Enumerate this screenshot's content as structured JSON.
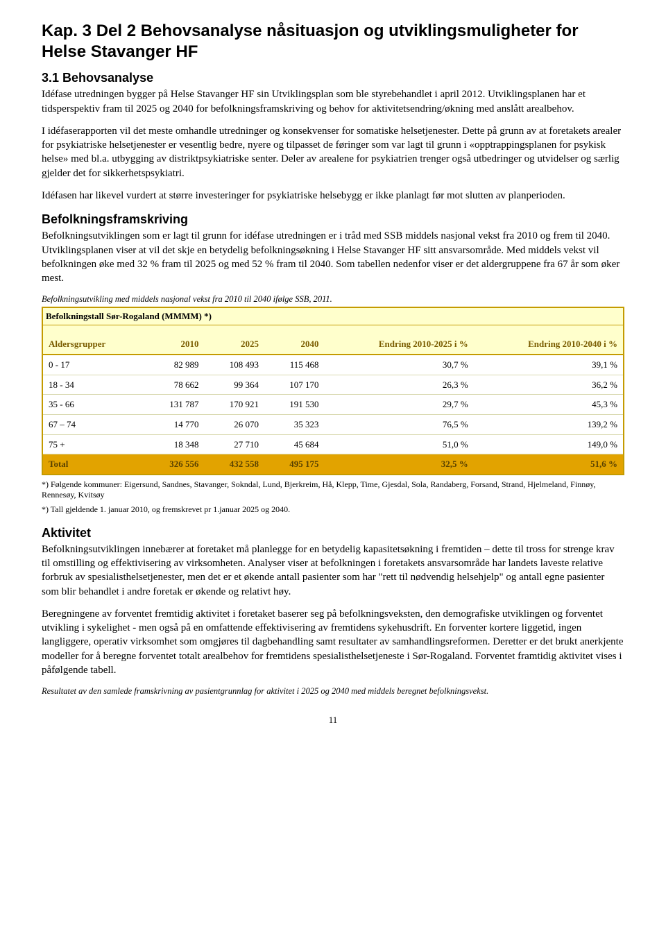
{
  "title": "Kap. 3 Del 2 Behovsanalyse nåsituasjon og utviklingsmuligheter for Helse Stavanger HF",
  "section1": {
    "heading": "3.1 Behovsanalyse",
    "p1": "Idéfase utredningen bygger på Helse Stavanger HF sin Utviklingsplan som ble styrebehandlet i april 2012. Utviklingsplanen har et tidsperspektiv fram til 2025 og 2040 for befolkningsframskriving og behov for aktivitetsendring/økning med anslått arealbehov.",
    "p2": "I idéfaserapporten vil det meste omhandle utredninger og konsekvenser for somatiske helsetjenester. Dette på grunn av at foretakets arealer for psykiatriske helsetjenester er vesentlig bedre, nyere og tilpasset de føringer som var lagt til grunn i «opptrappingsplanen for psykisk helse» med bl.a. utbygging av distriktpsykiatriske senter. Deler av arealene for psykiatrien trenger også utbedringer og utvidelser og særlig gjelder det for sikkerhetspsykiatri.",
    "p3": "Idéfasen har likevel vurdert at større investeringer for psykiatriske helsebygg er ikke planlagt før mot slutten av planperioden."
  },
  "section2": {
    "heading": "Befolkningsframskriving",
    "p1": "Befolkningsutviklingen som er lagt til grunn for idéfase utredningen er i tråd med SSB middels nasjonal vekst fra 2010 og frem til 2040.",
    "p2": "Utviklingsplanen viser at vil det skje en betydelig  befolkningsøkning i Helse Stavanger HF sitt ansvarsområde. Med middels vekst vil befolkningen øke med 32 % fram til 2025 og med 52 % fram til 2040. Som tabellen nedenfor viser er det aldergruppene fra 67 år som øker mest.",
    "table_caption": "Befolkningsutvikling med middels nasjonal vekst fra 2010 til 2040 ifølge SSB, 2011."
  },
  "table": {
    "banner": "Befolkningstall Sør-Rogaland (MMMM) *)",
    "headers": {
      "col1": "Aldersgrupper",
      "col2": "2010",
      "col3": "2025",
      "col4": "2040",
      "col5": "Endring 2010-2025 i %",
      "col6": "Endring 2010-2040 i %"
    },
    "rows": [
      {
        "label": "0 - 17",
        "v2010": "82 989",
        "v2025": "108 493",
        "v2040": "115 468",
        "e2025": "30,7 %",
        "e2040": "39,1 %"
      },
      {
        "label": "18 - 34",
        "v2010": "78 662",
        "v2025": "99 364",
        "v2040": "107 170",
        "e2025": "26,3 %",
        "e2040": "36,2 %"
      },
      {
        "label": "35 - 66",
        "v2010": "131 787",
        "v2025": "170 921",
        "v2040": "191 530",
        "e2025": "29,7 %",
        "e2040": "45,3 %"
      },
      {
        "label": "67 – 74",
        "v2010": "14 770",
        "v2025": "26 070",
        "v2040": "35 323",
        "e2025": "76,5 %",
        "e2040": "139,2 %"
      },
      {
        "label": "75 +",
        "v2010": "18 348",
        "v2025": "27 710",
        "v2040": "45 684",
        "e2025": "51,0 %",
        "e2040": "149,0 %"
      }
    ],
    "total": {
      "label": "Total",
      "v2010": "326 556",
      "v2025": "432 558",
      "v2040": "495 175",
      "e2025": "32,5 %",
      "e2040": "51,6 %"
    },
    "colors": {
      "banner_bg": "#ffffcc",
      "header_bg": "#ffffcc",
      "header_text": "#7a5c00",
      "border": "#c49b00",
      "row_border": "#d9d9b0",
      "total_bg": "#e2a300",
      "total_text": "#5a4200"
    }
  },
  "footnotes": {
    "f1": "*) Følgende kommuner: Eigersund, Sandnes, Stavanger, Sokndal, Lund, Bjerkreim, Hå, Klepp, Time, Gjesdal, Sola, Randaberg, Forsand, Strand, Hjelmeland, Finnøy, Rennesøy, Kvitsøy",
    "f2": "*) Tall gjeldende 1. januar 2010, og fremskrevet pr 1.januar 2025 og 2040."
  },
  "section3": {
    "heading": "Aktivitet",
    "p1": "Befolkningsutviklingen innebærer at foretaket må planlegge for en betydelig kapasitetsøkning i fremtiden – dette til tross for strenge krav til omstilling og effektivisering av virksomheten. Analyser viser at befolkningen i foretakets ansvarsområde har landets laveste relative forbruk av spesialisthelsetjenester, men det er et økende antall pasienter som har \"rett til nødvendig helsehjelp\" og antall egne pasienter som blir behandlet i andre foretak er økende og relativt høy.",
    "p2": "Beregningene av forventet fremtidig aktivitet i foretaket baserer seg på befolkningsveksten, den demografiske utviklingen og forventet utvikling i sykelighet - men også på en omfattende effektivisering av fremtidens sykehusdrift. En forventer kortere liggetid, ingen langliggere, operativ virksomhet som omgjøres til dagbehandling samt resultater av samhandlingsreformen. Deretter er det brukt anerkjente modeller for å beregne forventet totalt arealbehov for fremtidens spesialisthelsetjeneste i Sør-Rogaland. Forventet framtidig aktivitet vises i påfølgende tabell.",
    "caption2": "Resultatet av den samlede framskrivning av pasientgrunnlag for aktivitet i 2025 og 2040 med middels beregnet befolkningsvekst."
  },
  "page_number": "11"
}
